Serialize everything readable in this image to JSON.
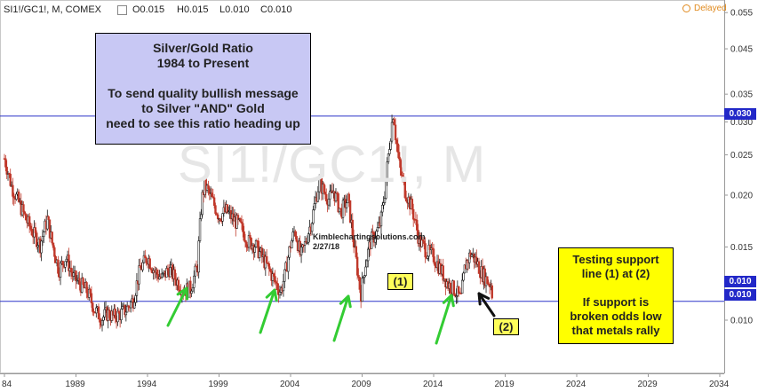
{
  "header": {
    "symbol": "SI1!/GC1!, M, COMEX",
    "open": "O0.015",
    "high": "H0.015",
    "low": "L0.010",
    "close": "C0.010",
    "delayed": "Delayed"
  },
  "watermark": "SI1!/GC1!, M",
  "annotations": {
    "title_box": [
      "Silver/Gold Ratio",
      "1984 to Present",
      "",
      "To send quality bullish message",
      "to Silver \"AND\" Gold",
      "need to see this ratio heading up"
    ],
    "support_box": [
      "Testing support",
      "line (1) at (2)",
      "",
      "If support is",
      "broken odds low",
      "that metals rally"
    ],
    "tag_1": "(1)",
    "tag_2": "(2)",
    "credit_1": "Kimblechartingsolutions.com",
    "credit_2": "2/27/18"
  },
  "price_tags": {
    "upper": "0.030",
    "lower": "0.010",
    "last": "0.010"
  },
  "colors": {
    "up": "#1a1a1a",
    "down": "#c0392b",
    "support_line": "#2d35c9",
    "arrow": "#33cc33",
    "title_box": "#c8c8f4",
    "support_box": "#ffff00"
  },
  "chart_data": {
    "type": "line",
    "title": "SI1!/GC1!, M, COMEX",
    "xlabel": "",
    "ylabel": "",
    "x_ticks": [
      "84",
      "1989",
      "1994",
      "1999",
      "2004",
      "2009",
      "2014",
      "2019",
      "2024",
      "2029",
      "2034"
    ],
    "y_ticks": [
      "0.010",
      "0.015",
      "0.020",
      "0.025",
      "0.030",
      "0.035",
      "0.045",
      "0.055"
    ],
    "xlim": [
      1984.0,
      2036.0
    ],
    "log_scale_y": true,
    "grid": false,
    "horizontal_lines": [
      {
        "value": 0.031,
        "label": "0.030"
      },
      {
        "value": 0.0111,
        "label": "0.010"
      }
    ],
    "series": [
      {
        "x": [
          1984.0,
          1984.5,
          1985.0,
          1985.5,
          1986.0,
          1986.5,
          1987.0,
          1987.3,
          1987.8,
          1988.3,
          1988.8,
          1989.3,
          1989.8,
          1990.3,
          1990.8,
          1991.2,
          1991.6,
          1992.0,
          1992.5,
          1993.0,
          1993.5,
          1994.0,
          1994.5,
          1995.0,
          1995.5,
          1996.0,
          1996.5,
          1997.0,
          1997.5,
          1997.8,
          1998.0,
          1998.5,
          1999.0,
          1999.5,
          2000.0,
          2000.5,
          2001.0,
          2001.5,
          2002.0,
          2002.5,
          2003.0,
          2003.3,
          2003.6,
          2004.0,
          2004.3,
          2004.7,
          2005.0,
          2005.5,
          2006.0,
          2006.3,
          2006.7,
          2007.0,
          2007.5,
          2008.0,
          2008.5,
          2008.9,
          2009.2,
          2009.6,
          2010.0,
          2010.3,
          2010.6,
          2010.9,
          2011.2,
          2011.3,
          2011.6,
          2012.0,
          2012.5,
          2013.0,
          2013.5,
          2014.0,
          2014.5,
          2015.0,
          2015.5,
          2015.9,
          2016.2,
          2016.6,
          2017.0,
          2017.3,
          2017.7,
          2018.0,
          2018.15
        ],
        "y": [
          0.0245,
          0.021,
          0.0192,
          0.0175,
          0.0162,
          0.0152,
          0.0175,
          0.0155,
          0.0132,
          0.0142,
          0.0127,
          0.0122,
          0.0117,
          0.0106,
          0.0101,
          0.0104,
          0.0102,
          0.0103,
          0.0106,
          0.0112,
          0.0133,
          0.0142,
          0.0131,
          0.0126,
          0.0133,
          0.0125,
          0.0118,
          0.0119,
          0.0135,
          0.0195,
          0.0212,
          0.0195,
          0.0178,
          0.0183,
          0.0175,
          0.0168,
          0.0155,
          0.0152,
          0.0142,
          0.0132,
          0.0122,
          0.0117,
          0.0128,
          0.0152,
          0.0165,
          0.0142,
          0.0152,
          0.0175,
          0.0215,
          0.0205,
          0.0195,
          0.0205,
          0.0182,
          0.0195,
          0.0145,
          0.0115,
          0.0135,
          0.0155,
          0.0162,
          0.0172,
          0.0205,
          0.0262,
          0.0322,
          0.0285,
          0.0235,
          0.0205,
          0.0185,
          0.0155,
          0.0147,
          0.0142,
          0.0132,
          0.0122,
          0.0118,
          0.0112,
          0.0135,
          0.0145,
          0.0138,
          0.0131,
          0.0125,
          0.0122,
          0.0111
        ]
      }
    ]
  }
}
